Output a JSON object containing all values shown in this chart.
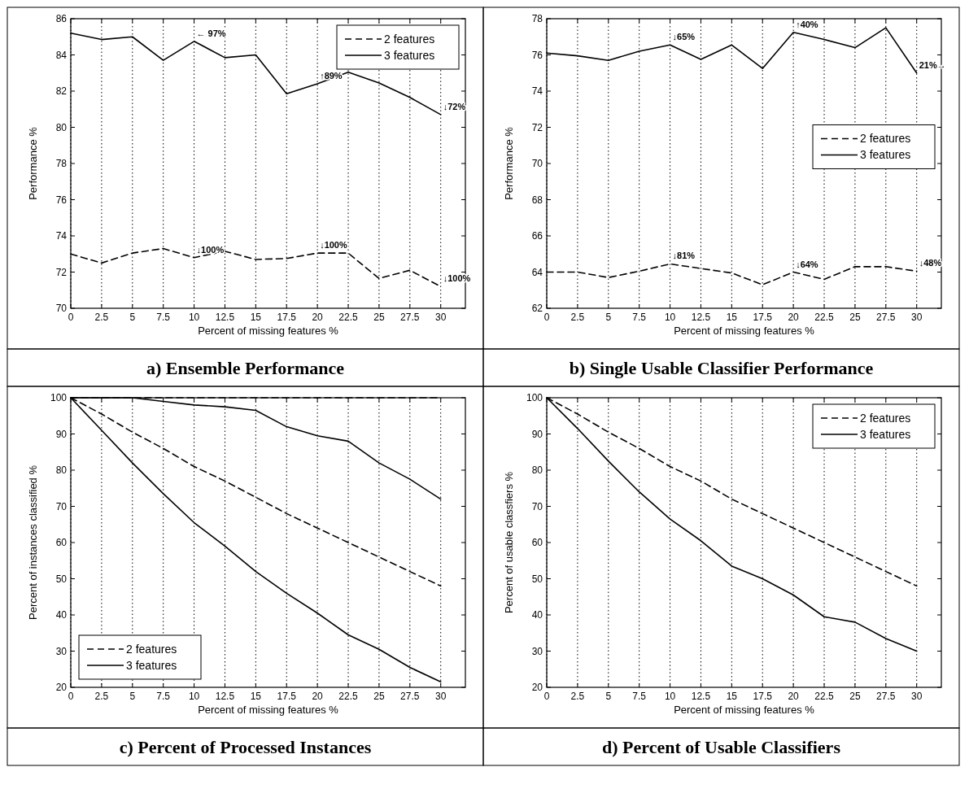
{
  "chart_data": [
    {
      "type": "line",
      "title": "a) Ensemble Performance",
      "xlabel": "Percent of missing features %",
      "ylabel": "Performance %",
      "x": [
        0,
        2.5,
        5,
        7.5,
        10,
        12.5,
        15,
        17.5,
        20,
        22.5,
        25,
        27.5,
        30
      ],
      "xlim": [
        0,
        32
      ],
      "xticks": [
        0,
        2.5,
        5,
        7.5,
        10,
        12.5,
        15,
        17.5,
        20,
        22.5,
        25,
        27.5,
        30
      ],
      "ylim": [
        70,
        86
      ],
      "yticks": [
        70,
        72,
        74,
        76,
        78,
        80,
        82,
        84,
        86
      ],
      "grid": "x",
      "legend": "top right",
      "series": [
        {
          "name": "2 features",
          "color": "#000000",
          "line_style": "dashed",
          "values": [
            73,
            72.5,
            73.05,
            73.3,
            72.8,
            73.15,
            72.7,
            72.75,
            73.05,
            73.05,
            71.65,
            72.1,
            71.2
          ]
        },
        {
          "name": "3 features",
          "color": "#000000",
          "line_style": "solid",
          "values": [
            85.2,
            84.85,
            85,
            83.7,
            84.75,
            83.85,
            84,
            81.85,
            82.4,
            83.05,
            82.45,
            81.65,
            80.7
          ]
        }
      ],
      "annotations": [
        {
          "text": "← 97%",
          "x": 10,
          "y": 84.75
        },
        {
          "text": "↑89%",
          "x": 20,
          "y": 82.4
        },
        {
          "text": "↓72%",
          "x": 30,
          "y": 80.7
        },
        {
          "text": "↓100%",
          "x": 10,
          "y": 72.8
        },
        {
          "text": "↓100%",
          "x": 20,
          "y": 73.05
        },
        {
          "text": "↓100%",
          "x": 30,
          "y": 71.2
        }
      ]
    },
    {
      "type": "line",
      "title": "b) Single Usable Classifier Performance",
      "xlabel": "Percent of missing features %",
      "ylabel": "Performance %",
      "x": [
        0,
        2.5,
        5,
        7.5,
        10,
        12.5,
        15,
        17.5,
        20,
        22.5,
        25,
        27.5,
        30
      ],
      "xlim": [
        0,
        32
      ],
      "xticks": [
        0,
        2.5,
        5,
        7.5,
        10,
        12.5,
        15,
        17.5,
        20,
        22.5,
        25,
        27.5,
        30
      ],
      "ylim": [
        62,
        78
      ],
      "yticks": [
        62,
        64,
        66,
        68,
        70,
        72,
        74,
        76,
        78
      ],
      "grid": "x",
      "legend": "right",
      "series": [
        {
          "name": "2 features",
          "color": "#000000",
          "line_style": "dashed",
          "values": [
            64,
            64,
            63.7,
            64.05,
            64.45,
            64.2,
            63.95,
            63.3,
            64,
            63.6,
            64.3,
            64.3,
            64.05
          ]
        },
        {
          "name": "3 features",
          "color": "#000000",
          "line_style": "solid",
          "values": [
            76.1,
            75.95,
            75.7,
            76.2,
            76.55,
            75.75,
            76.55,
            75.25,
            77.25,
            76.85,
            76.4,
            77.5,
            75
          ]
        }
      ],
      "annotations": [
        {
          "text": "↓65%",
          "x": 10,
          "y": 76.55
        },
        {
          "text": "↑40%",
          "x": 20,
          "y": 77.25
        },
        {
          "text": "21%→",
          "x": 30,
          "y": 75
        },
        {
          "text": "↓81%",
          "x": 10,
          "y": 64.45
        },
        {
          "text": "↓64%",
          "x": 20,
          "y": 64
        },
        {
          "text": "↓48%",
          "x": 30,
          "y": 64.05
        }
      ]
    },
    {
      "type": "line",
      "title": "c) Percent of Processed Instances",
      "xlabel": "Percent of missing features %",
      "ylabel": "Percent of instances classified %",
      "x": [
        0,
        2.5,
        5,
        7.5,
        10,
        12.5,
        15,
        17.5,
        20,
        22.5,
        25,
        27.5,
        30
      ],
      "xlim": [
        0,
        32
      ],
      "xticks": [
        0,
        2.5,
        5,
        7.5,
        10,
        12.5,
        15,
        17.5,
        20,
        22.5,
        25,
        27.5,
        30
      ],
      "ylim": [
        20,
        100
      ],
      "yticks": [
        20,
        30,
        40,
        50,
        60,
        70,
        80,
        90,
        100
      ],
      "grid": "x",
      "legend": "bottom left",
      "series": [
        {
          "name": "2 features",
          "color": "#000000",
          "line_style": "dashed",
          "values": [
            100,
            100,
            100,
            100,
            100,
            100,
            100,
            100,
            100,
            100,
            100,
            100,
            100
          ]
        },
        {
          "color": "#000000",
          "line_style": "dashed",
          "values": [
            100,
            95.5,
            90.5,
            86,
            81,
            77,
            72.5,
            68,
            64,
            60,
            56,
            52,
            48
          ]
        },
        {
          "name": "3 features",
          "color": "#000000",
          "line_style": "solid",
          "values": [
            100,
            100,
            100,
            99,
            98,
            97.5,
            96.5,
            92,
            89.5,
            88,
            82,
            77.5,
            72
          ]
        },
        {
          "color": "#000000",
          "line_style": "solid",
          "values": [
            100,
            91,
            82,
            73.5,
            65.5,
            59,
            52,
            46,
            40.5,
            34.5,
            30.5,
            25.5,
            21.5
          ]
        }
      ]
    },
    {
      "type": "line",
      "title": "d) Percent of Usable Classifiers",
      "xlabel": "Percent of missing features %",
      "ylabel": "Percent of usable classfiers %",
      "x": [
        0,
        2.5,
        5,
        7.5,
        10,
        12.5,
        15,
        17.5,
        20,
        22.5,
        25,
        27.5,
        30
      ],
      "xlim": [
        0,
        32
      ],
      "xticks": [
        0,
        2.5,
        5,
        7.5,
        10,
        12.5,
        15,
        17.5,
        20,
        22.5,
        25,
        27.5,
        30
      ],
      "ylim": [
        20,
        100
      ],
      "yticks": [
        20,
        30,
        40,
        50,
        60,
        70,
        80,
        90,
        100
      ],
      "grid": "x",
      "legend": "top right",
      "series": [
        {
          "name": "2 features",
          "color": "#000000",
          "line_style": "dashed",
          "values": [
            100,
            95.5,
            90.5,
            86,
            81,
            77,
            72,
            68,
            64,
            60,
            56,
            52,
            48
          ]
        },
        {
          "name": "3 features",
          "color": "#000000",
          "line_style": "solid",
          "values": [
            100,
            91.5,
            82.5,
            74,
            66.5,
            60.5,
            53.5,
            50,
            45.5,
            39.5,
            38,
            33.5,
            30
          ]
        }
      ]
    }
  ]
}
